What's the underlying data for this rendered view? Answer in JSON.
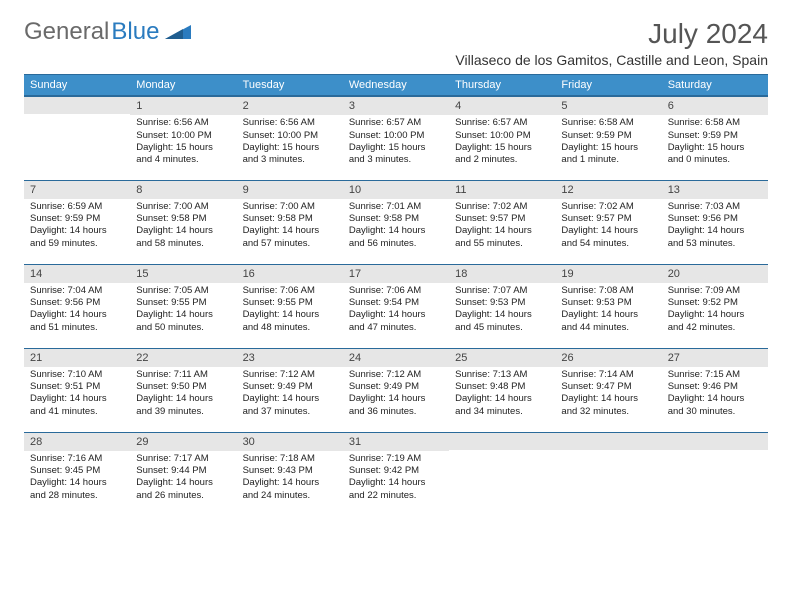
{
  "brand": {
    "part1": "General",
    "part2": "Blue"
  },
  "title": "July 2024",
  "location": "Villaseco de los Gamitos, Castille and Leon, Spain",
  "weekday_headers": [
    "Sunday",
    "Monday",
    "Tuesday",
    "Wednesday",
    "Thursday",
    "Friday",
    "Saturday"
  ],
  "colors": {
    "header_bg": "#3d8fc9",
    "header_border": "#2a6a9a",
    "daynum_bg": "#e6e6e6",
    "brand_gray": "#6a6a6a",
    "brand_blue": "#2a7bbf"
  },
  "weeks": [
    [
      {
        "n": "",
        "sr": "",
        "ss": "",
        "dl": ""
      },
      {
        "n": "1",
        "sr": "Sunrise: 6:56 AM",
        "ss": "Sunset: 10:00 PM",
        "dl": "Daylight: 15 hours and 4 minutes."
      },
      {
        "n": "2",
        "sr": "Sunrise: 6:56 AM",
        "ss": "Sunset: 10:00 PM",
        "dl": "Daylight: 15 hours and 3 minutes."
      },
      {
        "n": "3",
        "sr": "Sunrise: 6:57 AM",
        "ss": "Sunset: 10:00 PM",
        "dl": "Daylight: 15 hours and 3 minutes."
      },
      {
        "n": "4",
        "sr": "Sunrise: 6:57 AM",
        "ss": "Sunset: 10:00 PM",
        "dl": "Daylight: 15 hours and 2 minutes."
      },
      {
        "n": "5",
        "sr": "Sunrise: 6:58 AM",
        "ss": "Sunset: 9:59 PM",
        "dl": "Daylight: 15 hours and 1 minute."
      },
      {
        "n": "6",
        "sr": "Sunrise: 6:58 AM",
        "ss": "Sunset: 9:59 PM",
        "dl": "Daylight: 15 hours and 0 minutes."
      }
    ],
    [
      {
        "n": "7",
        "sr": "Sunrise: 6:59 AM",
        "ss": "Sunset: 9:59 PM",
        "dl": "Daylight: 14 hours and 59 minutes."
      },
      {
        "n": "8",
        "sr": "Sunrise: 7:00 AM",
        "ss": "Sunset: 9:58 PM",
        "dl": "Daylight: 14 hours and 58 minutes."
      },
      {
        "n": "9",
        "sr": "Sunrise: 7:00 AM",
        "ss": "Sunset: 9:58 PM",
        "dl": "Daylight: 14 hours and 57 minutes."
      },
      {
        "n": "10",
        "sr": "Sunrise: 7:01 AM",
        "ss": "Sunset: 9:58 PM",
        "dl": "Daylight: 14 hours and 56 minutes."
      },
      {
        "n": "11",
        "sr": "Sunrise: 7:02 AM",
        "ss": "Sunset: 9:57 PM",
        "dl": "Daylight: 14 hours and 55 minutes."
      },
      {
        "n": "12",
        "sr": "Sunrise: 7:02 AM",
        "ss": "Sunset: 9:57 PM",
        "dl": "Daylight: 14 hours and 54 minutes."
      },
      {
        "n": "13",
        "sr": "Sunrise: 7:03 AM",
        "ss": "Sunset: 9:56 PM",
        "dl": "Daylight: 14 hours and 53 minutes."
      }
    ],
    [
      {
        "n": "14",
        "sr": "Sunrise: 7:04 AM",
        "ss": "Sunset: 9:56 PM",
        "dl": "Daylight: 14 hours and 51 minutes."
      },
      {
        "n": "15",
        "sr": "Sunrise: 7:05 AM",
        "ss": "Sunset: 9:55 PM",
        "dl": "Daylight: 14 hours and 50 minutes."
      },
      {
        "n": "16",
        "sr": "Sunrise: 7:06 AM",
        "ss": "Sunset: 9:55 PM",
        "dl": "Daylight: 14 hours and 48 minutes."
      },
      {
        "n": "17",
        "sr": "Sunrise: 7:06 AM",
        "ss": "Sunset: 9:54 PM",
        "dl": "Daylight: 14 hours and 47 minutes."
      },
      {
        "n": "18",
        "sr": "Sunrise: 7:07 AM",
        "ss": "Sunset: 9:53 PM",
        "dl": "Daylight: 14 hours and 45 minutes."
      },
      {
        "n": "19",
        "sr": "Sunrise: 7:08 AM",
        "ss": "Sunset: 9:53 PM",
        "dl": "Daylight: 14 hours and 44 minutes."
      },
      {
        "n": "20",
        "sr": "Sunrise: 7:09 AM",
        "ss": "Sunset: 9:52 PM",
        "dl": "Daylight: 14 hours and 42 minutes."
      }
    ],
    [
      {
        "n": "21",
        "sr": "Sunrise: 7:10 AM",
        "ss": "Sunset: 9:51 PM",
        "dl": "Daylight: 14 hours and 41 minutes."
      },
      {
        "n": "22",
        "sr": "Sunrise: 7:11 AM",
        "ss": "Sunset: 9:50 PM",
        "dl": "Daylight: 14 hours and 39 minutes."
      },
      {
        "n": "23",
        "sr": "Sunrise: 7:12 AM",
        "ss": "Sunset: 9:49 PM",
        "dl": "Daylight: 14 hours and 37 minutes."
      },
      {
        "n": "24",
        "sr": "Sunrise: 7:12 AM",
        "ss": "Sunset: 9:49 PM",
        "dl": "Daylight: 14 hours and 36 minutes."
      },
      {
        "n": "25",
        "sr": "Sunrise: 7:13 AM",
        "ss": "Sunset: 9:48 PM",
        "dl": "Daylight: 14 hours and 34 minutes."
      },
      {
        "n": "26",
        "sr": "Sunrise: 7:14 AM",
        "ss": "Sunset: 9:47 PM",
        "dl": "Daylight: 14 hours and 32 minutes."
      },
      {
        "n": "27",
        "sr": "Sunrise: 7:15 AM",
        "ss": "Sunset: 9:46 PM",
        "dl": "Daylight: 14 hours and 30 minutes."
      }
    ],
    [
      {
        "n": "28",
        "sr": "Sunrise: 7:16 AM",
        "ss": "Sunset: 9:45 PM",
        "dl": "Daylight: 14 hours and 28 minutes."
      },
      {
        "n": "29",
        "sr": "Sunrise: 7:17 AM",
        "ss": "Sunset: 9:44 PM",
        "dl": "Daylight: 14 hours and 26 minutes."
      },
      {
        "n": "30",
        "sr": "Sunrise: 7:18 AM",
        "ss": "Sunset: 9:43 PM",
        "dl": "Daylight: 14 hours and 24 minutes."
      },
      {
        "n": "31",
        "sr": "Sunrise: 7:19 AM",
        "ss": "Sunset: 9:42 PM",
        "dl": "Daylight: 14 hours and 22 minutes."
      },
      {
        "n": "",
        "sr": "",
        "ss": "",
        "dl": ""
      },
      {
        "n": "",
        "sr": "",
        "ss": "",
        "dl": ""
      },
      {
        "n": "",
        "sr": "",
        "ss": "",
        "dl": ""
      }
    ]
  ]
}
